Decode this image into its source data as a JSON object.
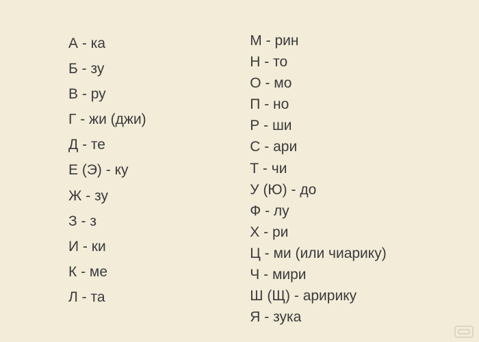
{
  "background_color": "#f2ecd9",
  "text_color": "#3a3a3a",
  "font_family": "Comic Sans MS",
  "font_size_pt": 16,
  "separator": " - ",
  "columns": {
    "left": [
      {
        "letter": "А",
        "sound": "ка"
      },
      {
        "letter": "Б",
        "sound": "зу"
      },
      {
        "letter": "В",
        "sound": "ру"
      },
      {
        "letter": "Г",
        "sound": "жи (джи)"
      },
      {
        "letter": "Д",
        "sound": "те"
      },
      {
        "letter": "Е (Э)",
        "sound": "ку"
      },
      {
        "letter": "Ж",
        "sound": "зу"
      },
      {
        "letter": "З",
        "sound": "з"
      },
      {
        "letter": "И",
        "sound": "ки"
      },
      {
        "letter": "К",
        "sound": "ме"
      },
      {
        "letter": "Л",
        "sound": "та"
      }
    ],
    "right": [
      {
        "letter": "М",
        "sound": "рин"
      },
      {
        "letter": "Н",
        "sound": "то"
      },
      {
        "letter": "О",
        "sound": "мо"
      },
      {
        "letter": "П",
        "sound": "но"
      },
      {
        "letter": "Р",
        "sound": "ши"
      },
      {
        "letter": "С",
        "sound": "ари"
      },
      {
        "letter": "Т",
        "sound": "чи"
      },
      {
        "letter": "У (Ю)",
        "sound": "до"
      },
      {
        "letter": "Ф",
        "sound": "лу"
      },
      {
        "letter": "Х",
        "sound": "ри"
      },
      {
        "letter": "Ц",
        "sound": "ми (или чиарику)"
      },
      {
        "letter": "Ч",
        "sound": "мири"
      },
      {
        "letter": "Ш (Щ)",
        "sound": "аририку"
      },
      {
        "letter": "Я",
        "sound": "зука"
      }
    ]
  },
  "watermark": {
    "name": "logo-icon",
    "color": "#b6b09a"
  }
}
